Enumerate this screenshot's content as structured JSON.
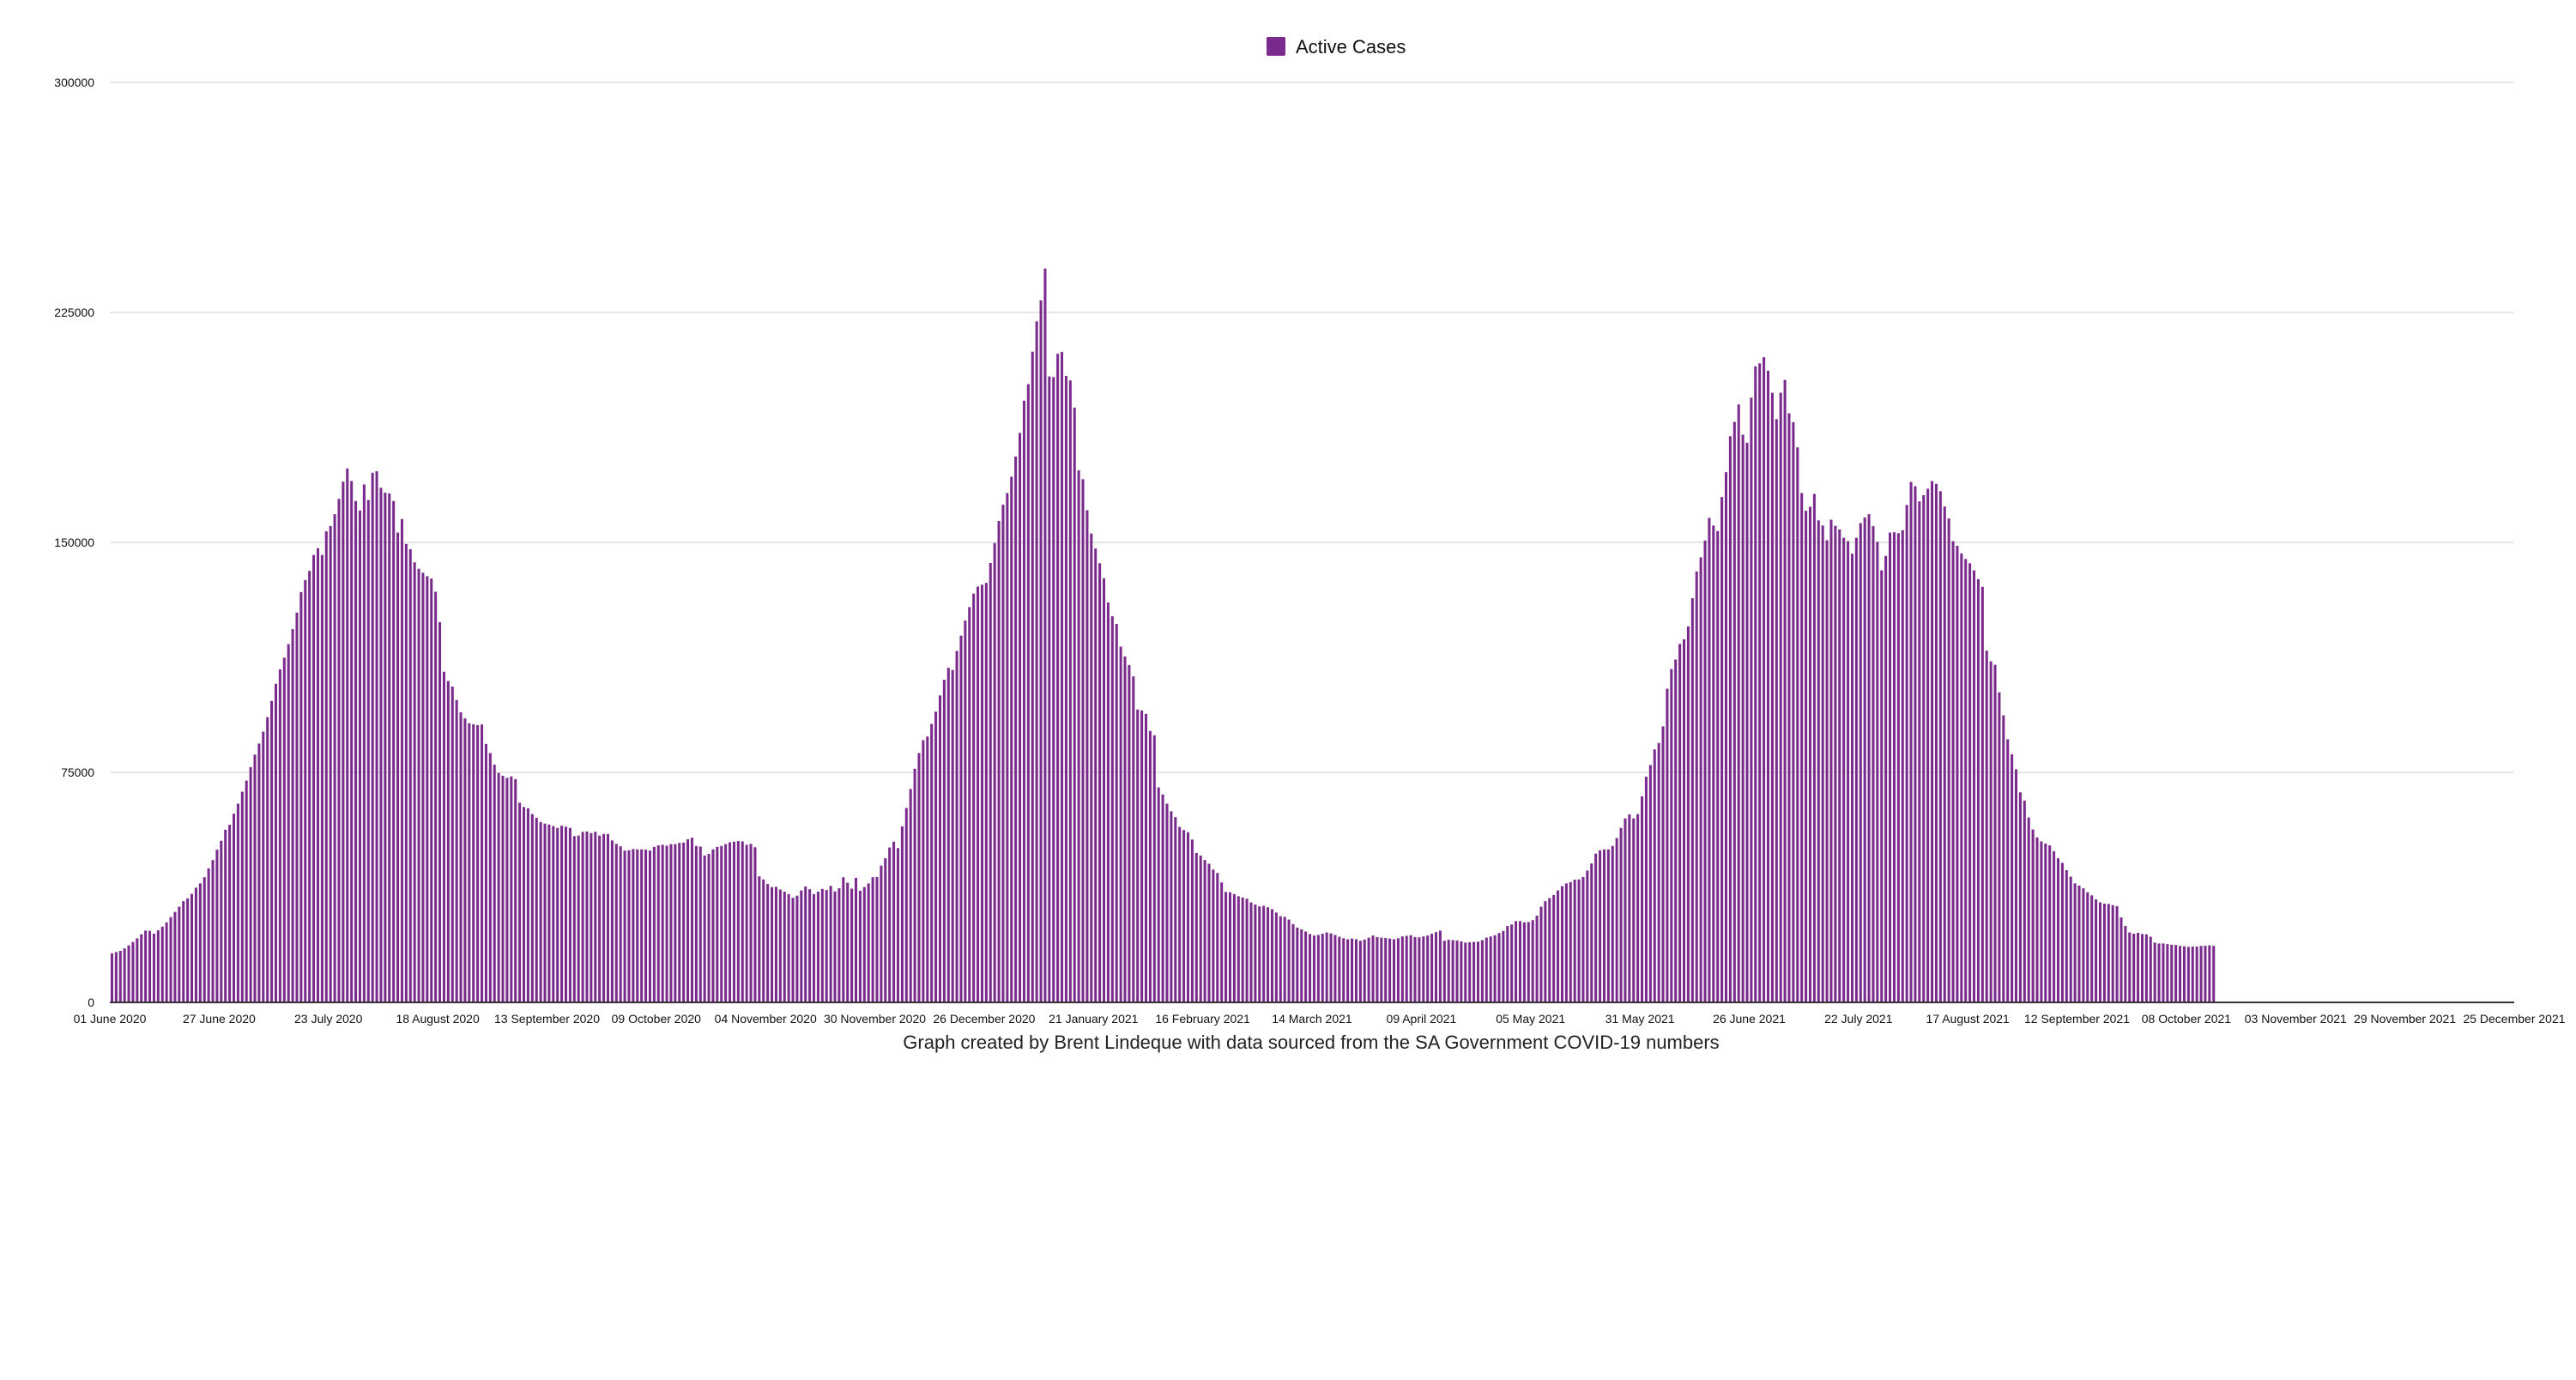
{
  "chart_data": {
    "type": "bar",
    "title": "",
    "xlabel": "",
    "ylabel": "",
    "legend": {
      "label": "Active Cases",
      "position": "top-center"
    },
    "caption": "Graph created by Brent Lindeque with data sourced from the SA Government COVID-19 numbers",
    "series_color": "#7a2a8c",
    "grid": true,
    "ylim": [
      0,
      300000
    ],
    "y_ticks": [
      0,
      75000,
      150000,
      225000,
      300000
    ],
    "y_tick_labels": [
      "0",
      "75000",
      "150000",
      "225000",
      "300000"
    ],
    "x_tick_labels": [
      "01 June 2020",
      "27 June 2020",
      "23 July 2020",
      "18 August 2020",
      "13 September 2020",
      "09 October 2020",
      "04 November 2020",
      "30 November 2020",
      "26 December 2020",
      "21 January 2021",
      "16 February 2021",
      "14 March 2021",
      "09 April 2021",
      "05 May 2021",
      "31 May 2021",
      "26 June 2021",
      "22 July 2021",
      "17 August 2021",
      "12 September 2021",
      "08 October 2021",
      "03 November 2021",
      "29 November 2021",
      "25 December 2021"
    ],
    "start_date": "01 June 2020",
    "days_total": 572,
    "note": "values are daily active cases read from the bar heights; 0-based day index from the start date, estimated from the gridlines",
    "values": [
      16000,
      16400,
      16800,
      17600,
      18600,
      19700,
      20900,
      22200,
      23400,
      23300,
      22400,
      23500,
      24700,
      26100,
      27800,
      29500,
      31200,
      33000,
      33900,
      35400,
      37400,
      38800,
      40800,
      43700,
      46400,
      49800,
      52700,
      56300,
      57900,
      61500,
      64800,
      68700,
      72300,
      76700,
      80800,
      84400,
      88300,
      93000,
      98300,
      103900,
      108600,
      112400,
      116800,
      121700,
      127100,
      133800,
      137700,
      140700,
      145900,
      148100,
      145900,
      153600,
      155300,
      159200,
      164200,
      169800,
      174100,
      170000,
      163500,
      160400,
      168900,
      163800,
      172700,
      173200,
      167800,
      166200,
      166000,
      163500,
      153200,
      157600,
      149500,
      147800,
      143500,
      141400,
      140100,
      139000,
      138200,
      133900,
      124000,
      107800,
      104800,
      103000,
      98600,
      94600,
      92600,
      91000,
      90700,
      90400,
      90600,
      84300,
      81300,
      77500,
      74800,
      73900,
      73200,
      73700,
      72800,
      65100,
      63700,
      63300,
      61400,
      60200,
      58800,
      58300,
      58000,
      57500,
      56900,
      57600,
      57300,
      56900,
      54200,
      54400,
      55600,
      55700,
      55200,
      55600,
      54400,
      54900,
      54900,
      52800,
      51700,
      50900,
      49500,
      49600,
      50000,
      49900,
      49900,
      49800,
      49500,
      50700,
      51200,
      51400,
      51100,
      51600,
      51600,
      52000,
      52100,
      53200,
      53700,
      51000,
      50800,
      47900,
      48400,
      49900,
      50700,
      51000,
      51600,
      52200,
      52400,
      52600,
      52500,
      51400,
      51700,
      50600,
      41100,
      40100,
      38600,
      37600,
      37700,
      36800,
      36100,
      35300,
      34100,
      34800,
      36500,
      37800,
      36900,
      35300,
      36100,
      37000,
      36600,
      38000,
      36200,
      37200,
      40800,
      39000,
      37100,
      40600,
      36400,
      37600,
      38800,
      40800,
      40900,
      44600,
      47000,
      50500,
      52400,
      50300,
      57400,
      63400,
      69600,
      76200,
      81300,
      85500,
      86700,
      90800,
      94800,
      100100,
      105200,
      109100,
      108400,
      114600,
      119600,
      124500,
      128900,
      133300,
      135600,
      136200,
      136800,
      143300,
      149800,
      157000,
      162300,
      166100,
      171400,
      178000,
      185700,
      196200,
      201600,
      212200,
      222100,
      228900,
      239300,
      204100,
      203900,
      211500,
      212100,
      204300,
      202800,
      193900,
      173500,
      170600,
      160500,
      152900,
      148000,
      143200,
      138300,
      130400,
      125900,
      123400,
      116000,
      112800,
      110000,
      106300,
      95500,
      95200,
      94100,
      88500,
      87100,
      70100,
      67800,
      64800,
      62300,
      60400,
      57200,
      56200,
      55500,
      53100,
      48700,
      47900,
      46400,
      45200,
      43300,
      42200,
      39100,
      36000,
      35900,
      35300,
      34600,
      34200,
      33800,
      32600,
      31900,
      31300,
      31500,
      31000,
      30400,
      29300,
      28100,
      27900,
      27000,
      25500,
      24400,
      23800,
      23100,
      22300,
      21800,
      22000,
      22400,
      22800,
      22500,
      22000,
      21400,
      20900,
      20600,
      20800,
      20600,
      20100,
      20500,
      21100,
      21800,
      21300,
      21100,
      21000,
      20800,
      20600,
      20900,
      21500,
      21700,
      21900,
      21300,
      21200,
      21500,
      21800,
      22400,
      22900,
      23400,
      20100,
      20400,
      20300,
      20200,
      19900,
      19500,
      19600,
      19700,
      19800,
      20300,
      21100,
      21500,
      21900,
      22600,
      23300,
      24900,
      25400,
      26500,
      26500,
      26100,
      26200,
      26800,
      28300,
      31200,
      33000,
      34000,
      35000,
      36500,
      37900,
      38800,
      39200,
      40000,
      40100,
      40900,
      43000,
      45300,
      48500,
      49600,
      49900,
      49900,
      51000,
      53600,
      56900,
      60000,
      61300,
      60000,
      61400,
      67200,
      73600,
      77400,
      82500,
      84600,
      90000,
      102300,
      108700,
      111800,
      116900,
      118400,
      122600,
      131800,
      140500,
      145100,
      150600,
      158000,
      155500,
      153700,
      164800,
      172900,
      184600,
      189300,
      195000,
      185100,
      182500,
      197200,
      207400,
      208400,
      210400,
      206000,
      198800,
      190200,
      198800,
      203000,
      192100,
      189200,
      181000,
      166100,
      160300,
      161600,
      165800,
      157200,
      155500,
      150700,
      157400,
      155400,
      154200,
      151500,
      150400,
      146300,
      151500,
      156300,
      158100,
      159200,
      155300,
      150200,
      140900,
      145600,
      153200,
      153300,
      153000,
      154000,
      162200,
      169700,
      168300,
      163400,
      165400,
      167500,
      170000,
      169100,
      166700,
      161700,
      157800,
      150400,
      148900,
      146400,
      144600,
      143200,
      140900,
      138000,
      135500,
      114700,
      111200,
      110100,
      101100,
      93600,
      85800,
      80900,
      76000,
      68500,
      65800,
      60300,
      56400,
      53800,
      52500,
      51800,
      51200,
      49300,
      47000,
      45500,
      43100,
      41000,
      38800,
      38100,
      37200,
      35900,
      34900,
      33600,
      32600,
      32200,
      32100,
      31700,
      31400,
      27700,
      24900,
      22800,
      22400,
      22700,
      22300,
      22200,
      21400,
      19500,
      19200,
      19200,
      19000,
      18800,
      18700,
      18400,
      18300,
      18100,
      18200,
      18200,
      18400,
      18500,
      18600,
      18400
    ]
  }
}
